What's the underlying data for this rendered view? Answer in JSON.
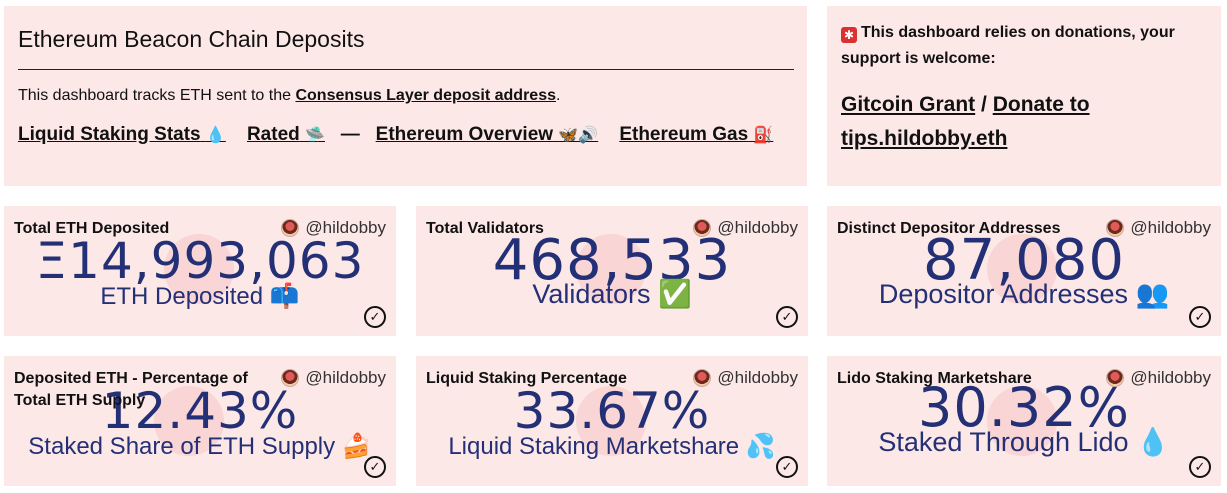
{
  "header": {
    "title": "Ethereum Beacon Chain Deposits",
    "desc_prefix": "This dashboard tracks ETH sent to the ",
    "desc_link": "Consensus Layer deposit address",
    "desc_suffix": ".",
    "links": [
      {
        "label": "Liquid Staking Stats",
        "emoji": "💧"
      },
      {
        "label": "Rated",
        "emoji": "🛸"
      },
      {
        "label": "Ethereum Overview",
        "emoji": "🦋🔊"
      },
      {
        "label": "Ethereum Gas",
        "emoji": "⛽"
      }
    ],
    "separator": "—"
  },
  "donation": {
    "message": "This dashboard relies on donations, your support is welcome:",
    "link1": "Gitcoin Grant",
    "slash": " / ",
    "link2": "Donate to tips.hildobby.eth"
  },
  "stats": [
    {
      "title": "Total ETH Deposited",
      "author": "@hildobby",
      "value": "Ξ14,993,063",
      "sub": "ETH Deposited 📫"
    },
    {
      "title": "Total Validators",
      "author": "@hildobby",
      "value": "468,533",
      "sub": "Validators ✅"
    },
    {
      "title": "Distinct Depositor Addresses",
      "author": "@hildobby",
      "value": "87,080",
      "sub": "Depositor Addresses 👥"
    },
    {
      "title": "Deposited ETH - Percentage of Total ETH Supply",
      "author": "@hildobby",
      "value": "12.43%",
      "sub": "Staked Share of ETH Supply 🍰"
    },
    {
      "title": "Liquid Staking Percentage",
      "author": "@hildobby",
      "value": "33.67%",
      "sub": "Liquid Staking Marketshare 💦"
    },
    {
      "title": "Lido Staking Marketshare",
      "author": "@hildobby",
      "value": "30.32%",
      "sub": "Staked Through Lido 💧"
    }
  ],
  "icons": {
    "check": "checkmark-circle-icon",
    "avatar": "avatar"
  },
  "colors": {
    "card_bg": "#fde8e8",
    "value_text": "#243075"
  }
}
